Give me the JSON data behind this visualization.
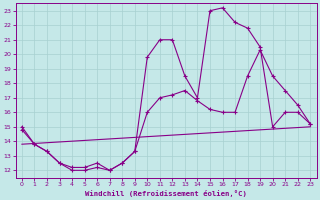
{
  "xlabel": "Windchill (Refroidissement éolien,°C)",
  "bg_color": "#c5e8e8",
  "line_color": "#880088",
  "grid_color": "#a8d0d0",
  "ylim": [
    11.5,
    23.5
  ],
  "xlim": [
    -0.5,
    23.5
  ],
  "yticks": [
    12,
    13,
    14,
    15,
    16,
    17,
    18,
    19,
    20,
    21,
    22,
    23
  ],
  "xticks": [
    0,
    1,
    2,
    3,
    4,
    5,
    6,
    7,
    8,
    9,
    10,
    11,
    12,
    13,
    14,
    15,
    16,
    17,
    18,
    19,
    20,
    21,
    22,
    23
  ],
  "line1_x": [
    0,
    1,
    2,
    3,
    4,
    5,
    6,
    7,
    8,
    9,
    10,
    11,
    12,
    13,
    14,
    15,
    16,
    17,
    18,
    19,
    20,
    21,
    22,
    23
  ],
  "line1_y": [
    15.0,
    13.8,
    13.3,
    12.5,
    12.0,
    12.0,
    12.2,
    12.0,
    12.5,
    13.3,
    19.8,
    21.0,
    21.0,
    18.5,
    17.0,
    23.0,
    23.2,
    22.2,
    21.8,
    20.5,
    15.0,
    16.0,
    16.0,
    15.2
  ],
  "line2_x": [
    0,
    1,
    2,
    3,
    4,
    5,
    6,
    7,
    8,
    9,
    10,
    11,
    12,
    13,
    14,
    15,
    16,
    17,
    18,
    19,
    20,
    21,
    22,
    23
  ],
  "line2_y": [
    14.8,
    13.8,
    13.3,
    12.5,
    12.2,
    12.2,
    12.5,
    12.0,
    12.5,
    13.3,
    16.0,
    17.0,
    17.2,
    17.5,
    16.8,
    16.2,
    16.0,
    16.0,
    18.5,
    20.3,
    18.5,
    17.5,
    16.5,
    15.2
  ],
  "line3_x": [
    0,
    23
  ],
  "line3_y": [
    13.8,
    15.0
  ]
}
